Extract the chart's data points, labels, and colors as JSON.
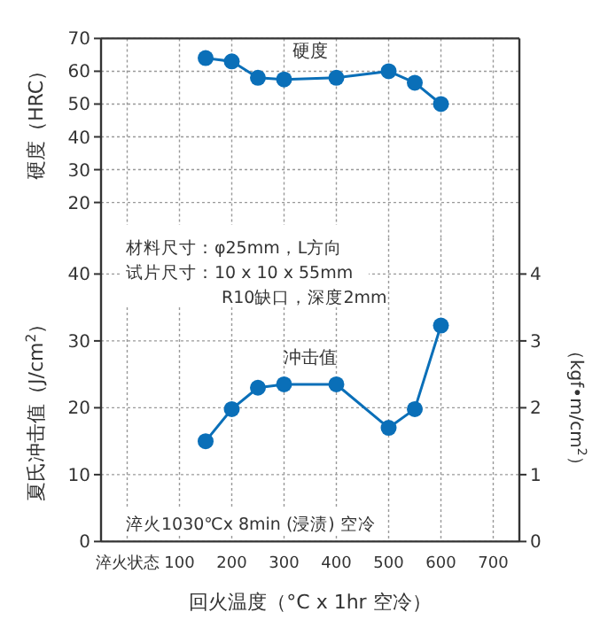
{
  "chart_data": [
    {
      "type": "line",
      "ylabel": "硬度（HRC）",
      "x": [
        150,
        200,
        250,
        300,
        400,
        500,
        550,
        600
      ],
      "series": [
        {
          "name": "硬度",
          "color": "#0a6fb8",
          "values": [
            64,
            63,
            58,
            57.5,
            58,
            60,
            56.5,
            50
          ]
        }
      ],
      "xlim": [
        -50,
        750
      ],
      "xticks": [
        0,
        100,
        200,
        300,
        400,
        500,
        600,
        700
      ],
      "ylim": [
        20,
        70
      ],
      "yticks": [
        20,
        30,
        40,
        50,
        60,
        70
      ],
      "grid": true,
      "marker": "circle",
      "tick_labels": "y"
    },
    {
      "type": "line",
      "xlabel": "回火温度（°C x 1hr 空冷）",
      "ylabel": "夏氏冲击值（J/cm$^{2}$）",
      "y2label": "（kgf•m/cm$^{2}$）",
      "x": [
        150,
        200,
        250,
        300,
        400,
        500,
        550,
        600
      ],
      "series": [
        {
          "name": "冲击值",
          "color": "#0a6fb8",
          "values": [
            15,
            19.8,
            23,
            23.5,
            23.5,
            17,
            19.8,
            32.3
          ]
        }
      ],
      "xlim": [
        -50,
        750
      ],
      "xticks": [
        {
          "value": 0,
          "label": "淬火状态"
        },
        100,
        200,
        300,
        400,
        500,
        600,
        700
      ],
      "ylim": [
        0,
        40
      ],
      "yticks": [
        0,
        10,
        20,
        30,
        40
      ],
      "y2lim": [
        0,
        4
      ],
      "y2ticks": [
        0,
        1,
        2,
        3,
        4
      ],
      "grid": true,
      "marker": "circle",
      "annotations": [
        "材料尺寸：φ25mm，L方向",
        "试片尺寸：10 x 10 x 55mm",
        "R10缺口，深度2mm",
        "淬火1030℃x 8min (浸渍) 空冷"
      ]
    }
  ]
}
